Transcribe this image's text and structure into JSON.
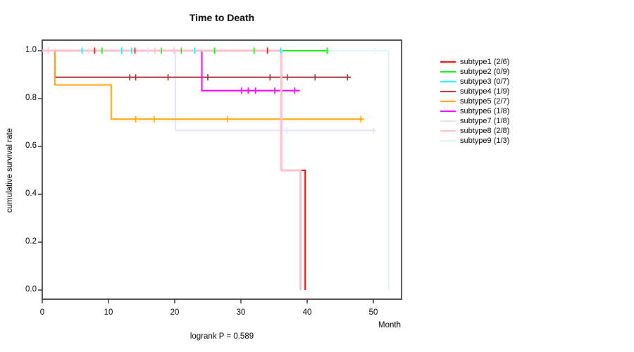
{
  "chart_data": {
    "type": "line",
    "chart_kind": "kaplan-meier-step",
    "title": "Time to Death",
    "subtitle": "logrank P = 0.589",
    "xlabel": "Month",
    "ylabel": "cumulative survival rate",
    "xlim": [
      0,
      54.3
    ],
    "ylim": [
      0,
      1
    ],
    "x_ticks": [
      0,
      10,
      20,
      30,
      40,
      50
    ],
    "y_ticks": [
      0.0,
      0.2,
      0.4,
      0.6,
      0.8,
      1.0
    ],
    "grid": false,
    "legend_position": "right-outside",
    "axis_color": "#333333",
    "box_color": "#4f4f4f",
    "series": [
      {
        "name": "subtype1 (2/6)",
        "color": "#ff0000",
        "line_width": 2,
        "steps": [
          [
            0,
            1
          ],
          [
            36.1,
            1
          ],
          [
            36.1,
            0.5
          ],
          [
            39.7,
            0.5
          ],
          [
            39.7,
            0
          ]
        ],
        "censors": [
          [
            7.9,
            1
          ],
          [
            14,
            1
          ],
          [
            34,
            1
          ]
        ]
      },
      {
        "name": "subtype2 (0/9)",
        "color": "#00ff00",
        "line_width": 2,
        "steps": [
          [
            0,
            1
          ],
          [
            43.2,
            1
          ]
        ],
        "censors": [
          [
            9,
            1
          ],
          [
            18,
            1
          ],
          [
            21,
            1
          ],
          [
            26,
            1
          ],
          [
            32,
            1
          ],
          [
            43,
            1
          ]
        ]
      },
      {
        "name": "subtype3 (0/7)",
        "color": "#00ffff",
        "line_width": 2,
        "steps": [
          [
            0,
            1
          ],
          [
            36.3,
            1
          ]
        ],
        "censors": [
          [
            6,
            1
          ],
          [
            12,
            1
          ],
          [
            13.5,
            1
          ],
          [
            23,
            1
          ],
          [
            36,
            1
          ]
        ]
      },
      {
        "name": "subtype4 (1/9)",
        "color": "#a52a2a",
        "line_width": 2,
        "steps": [
          [
            0,
            1
          ],
          [
            1.9,
            1
          ],
          [
            1.9,
            0.889
          ],
          [
            46.6,
            0.889
          ]
        ],
        "censors": [
          [
            13.2,
            0.889
          ],
          [
            14.1,
            0.889
          ],
          [
            19,
            0.889
          ],
          [
            25,
            0.889
          ],
          [
            34.4,
            0.889
          ],
          [
            37,
            0.889
          ],
          [
            41.2,
            0.889
          ],
          [
            46.1,
            0.889
          ]
        ]
      },
      {
        "name": "subtype5 (2/7)",
        "color": "#ffa500",
        "line_width": 2,
        "steps": [
          [
            0,
            1
          ],
          [
            1.9,
            1
          ],
          [
            1.9,
            0.857
          ],
          [
            10.4,
            0.857
          ],
          [
            10.4,
            0.714
          ],
          [
            48.6,
            0.714
          ]
        ],
        "censors": [
          [
            14.1,
            0.714
          ],
          [
            16.9,
            0.714
          ],
          [
            28,
            0.714
          ],
          [
            48.1,
            0.714
          ]
        ]
      },
      {
        "name": "subtype6 (1/8)",
        "color": "#ff00ff",
        "line_width": 2,
        "steps": [
          [
            0,
            1
          ],
          [
            24.1,
            1
          ],
          [
            24.1,
            0.833
          ],
          [
            38.9,
            0.833
          ]
        ],
        "censors": [
          [
            30.1,
            0.833
          ],
          [
            31.1,
            0.833
          ],
          [
            32.2,
            0.833
          ],
          [
            35.1,
            0.833
          ],
          [
            38.1,
            0.833
          ]
        ]
      },
      {
        "name": "subtype7 (1/8)",
        "color": "#e2e2f8",
        "line_width": 2,
        "steps": [
          [
            0,
            1
          ],
          [
            20.1,
            1
          ],
          [
            20.1,
            0.667
          ],
          [
            50.4,
            0.667
          ]
        ],
        "censors": [
          [
            7,
            1
          ],
          [
            16,
            1
          ],
          [
            36.9,
            0.667
          ],
          [
            50,
            0.667
          ]
        ]
      },
      {
        "name": "subtype8 (2/8)",
        "color": "#ffc0cb",
        "line_width": 3,
        "steps": [
          [
            0,
            1
          ],
          [
            36.1,
            1
          ],
          [
            36.1,
            0.5
          ],
          [
            39,
            0.5
          ],
          [
            39,
            0
          ]
        ],
        "censors": [
          [
            0.9,
            1
          ],
          [
            17,
            1
          ],
          [
            19.9,
            1
          ]
        ]
      },
      {
        "name": "subtype9 (1/3)",
        "color": "#d9f7f7",
        "line_width": 2,
        "steps": [
          [
            0,
            1
          ],
          [
            52.3,
            1
          ],
          [
            52.3,
            0
          ]
        ],
        "censors": [
          [
            50.2,
            1
          ]
        ]
      }
    ],
    "draw_order": [
      8,
      6,
      1,
      2,
      3,
      4,
      5,
      0,
      7
    ]
  }
}
